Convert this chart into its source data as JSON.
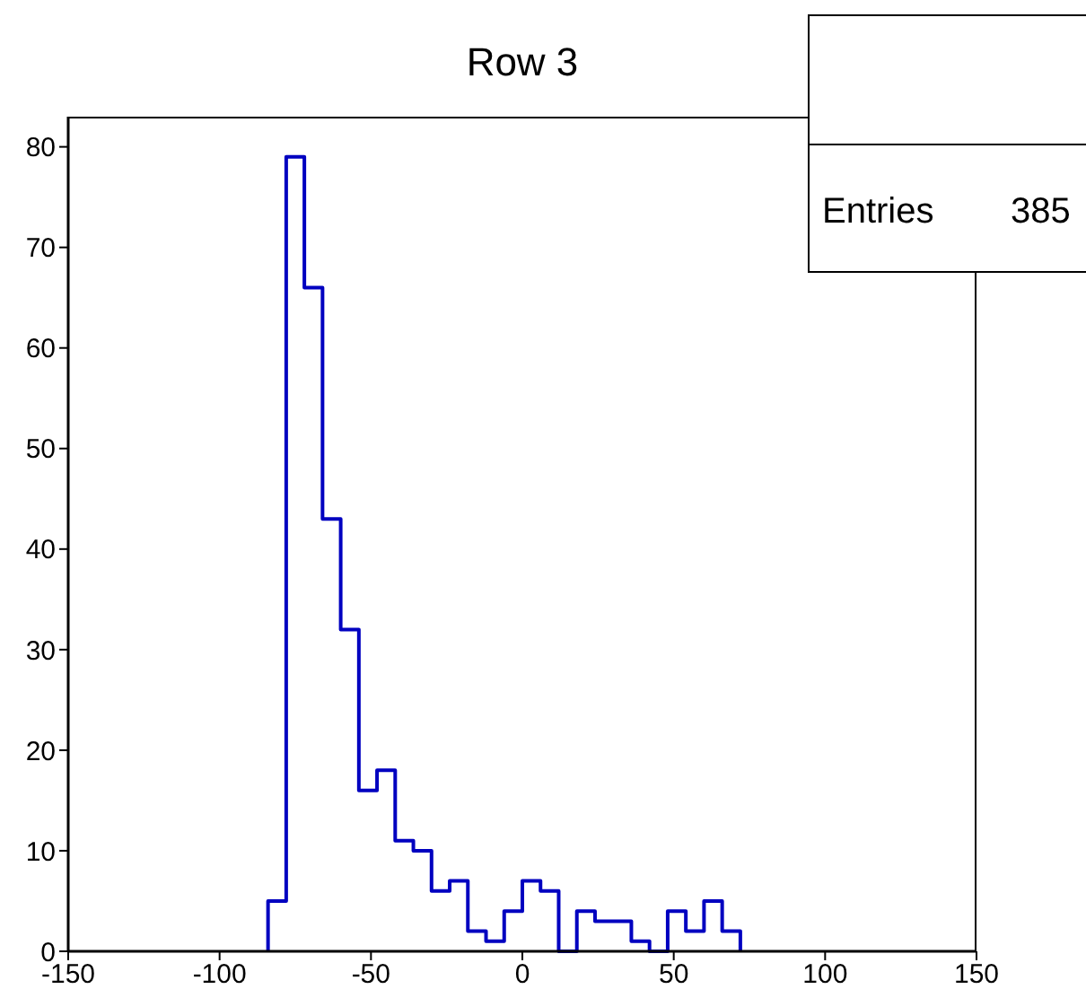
{
  "chart_data": {
    "type": "histogram",
    "title": "Row 3",
    "bins": [
      -84,
      -78,
      -72,
      -66,
      -60,
      -54,
      -48,
      -42,
      -36,
      -30,
      -24,
      -18,
      -12,
      -6,
      0,
      6,
      12,
      18,
      24,
      30,
      36,
      42,
      48,
      54,
      60,
      66,
      72
    ],
    "values": [
      5,
      79,
      66,
      43,
      32,
      16,
      18,
      11,
      10,
      6,
      7,
      2,
      1,
      4,
      7,
      6,
      0,
      4,
      3,
      3,
      1,
      0,
      4,
      2,
      5,
      2
    ],
    "color": "#0000c0",
    "xlim": [
      -150,
      150
    ],
    "xticks": [
      -150,
      -100,
      -50,
      0,
      50,
      100,
      150
    ],
    "ylim": [
      0,
      83
    ],
    "yticks": [
      0,
      10,
      20,
      30,
      40,
      50,
      60,
      70,
      80
    ],
    "annotations": [
      "Entries",
      "385"
    ]
  }
}
